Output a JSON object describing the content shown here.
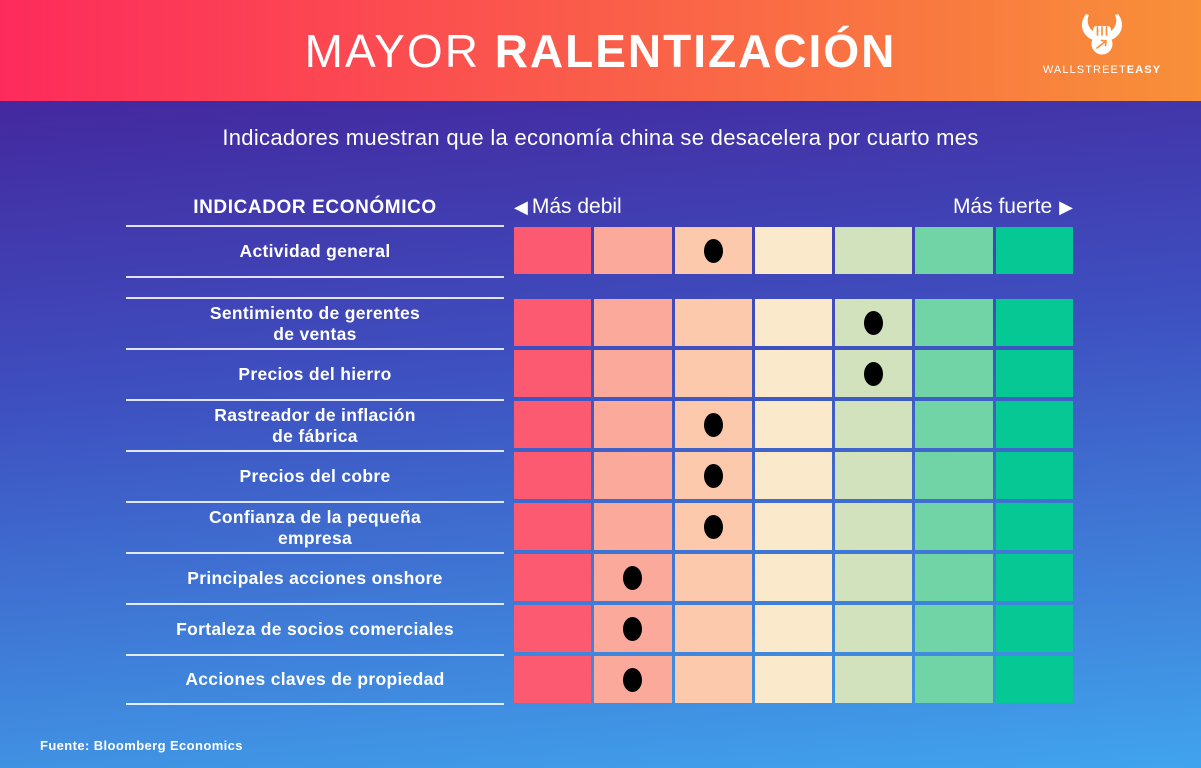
{
  "header": {
    "title_light": "MAYOR ",
    "title_bold": "RALENTIZACIÓN",
    "gradient": [
      "#FD2B5C",
      "#F89038"
    ],
    "logo": {
      "icon": "bull-fist-icon",
      "brand_light": "WALLSTREET",
      "brand_bold": "EASY"
    }
  },
  "subtitle": "Indicadores muestran que la economía china se desacelera por cuarto mes",
  "background_gradient": [
    "#44289F",
    "#40A4ED"
  ],
  "table": {
    "column_header": "INDICADOR ECONÓMICO",
    "scale": {
      "weak_arrow": "◀",
      "weak_label": "Más debil",
      "strong_label": "Más fuerte",
      "strong_arrow": "▶",
      "levels": 7,
      "colors": [
        "#FB5A70",
        "#FBA99B",
        "#FCC9AD",
        "#FAE9CB",
        "#D2E2BD",
        "#71D4A7",
        "#06C894"
      ]
    },
    "dot_color": "#000000",
    "rows": [
      {
        "label": "Actividad general",
        "dot": 3,
        "spacer_after": true
      },
      {
        "label": "Sentimiento de gerentes\nde ventas",
        "dot": 5
      },
      {
        "label": "Precios del hierro",
        "dot": 5
      },
      {
        "label": "Rastreador de inflación\nde fábrica",
        "dot": 3
      },
      {
        "label": "Precios del cobre",
        "dot": 3
      },
      {
        "label": "Confianza de la pequeña\nempresa",
        "dot": 3
      },
      {
        "label": "Principales acciones onshore",
        "dot": 2
      },
      {
        "label": "Fortaleza de socios comerciales",
        "dot": 2
      },
      {
        "label": "Acciones claves de propiedad",
        "dot": 2
      }
    ]
  },
  "footer": {
    "source": "Fuente: Bloomberg Economics"
  },
  "chart_data": {
    "type": "heatmap",
    "title": "MAYOR RALENTIZACIÓN",
    "subtitle": "Indicadores muestran que la economía china se desacelera por cuarto mes",
    "scale": {
      "min_label": "Más debil",
      "max_label": "Más fuerte",
      "levels": 7,
      "colors": [
        "#FB5A70",
        "#FBA99B",
        "#FCC9AD",
        "#FAE9CB",
        "#D2E2BD",
        "#71D4A7",
        "#06C894"
      ]
    },
    "categories": [
      "Actividad general",
      "Sentimiento de gerentes de ventas",
      "Precios del hierro",
      "Rastreador de inflación de fábrica",
      "Precios del cobre",
      "Confianza de la pequeña empresa",
      "Principales acciones onshore",
      "Fortaleza de socios comerciales",
      "Acciones claves de propiedad"
    ],
    "values": [
      3,
      5,
      5,
      3,
      3,
      3,
      2,
      2,
      2
    ],
    "value_meaning": "marker position on 1 (más debil) .. 7 (más fuerte) scale",
    "legend_position": "top",
    "source": "Fuente: Bloomberg Economics"
  }
}
